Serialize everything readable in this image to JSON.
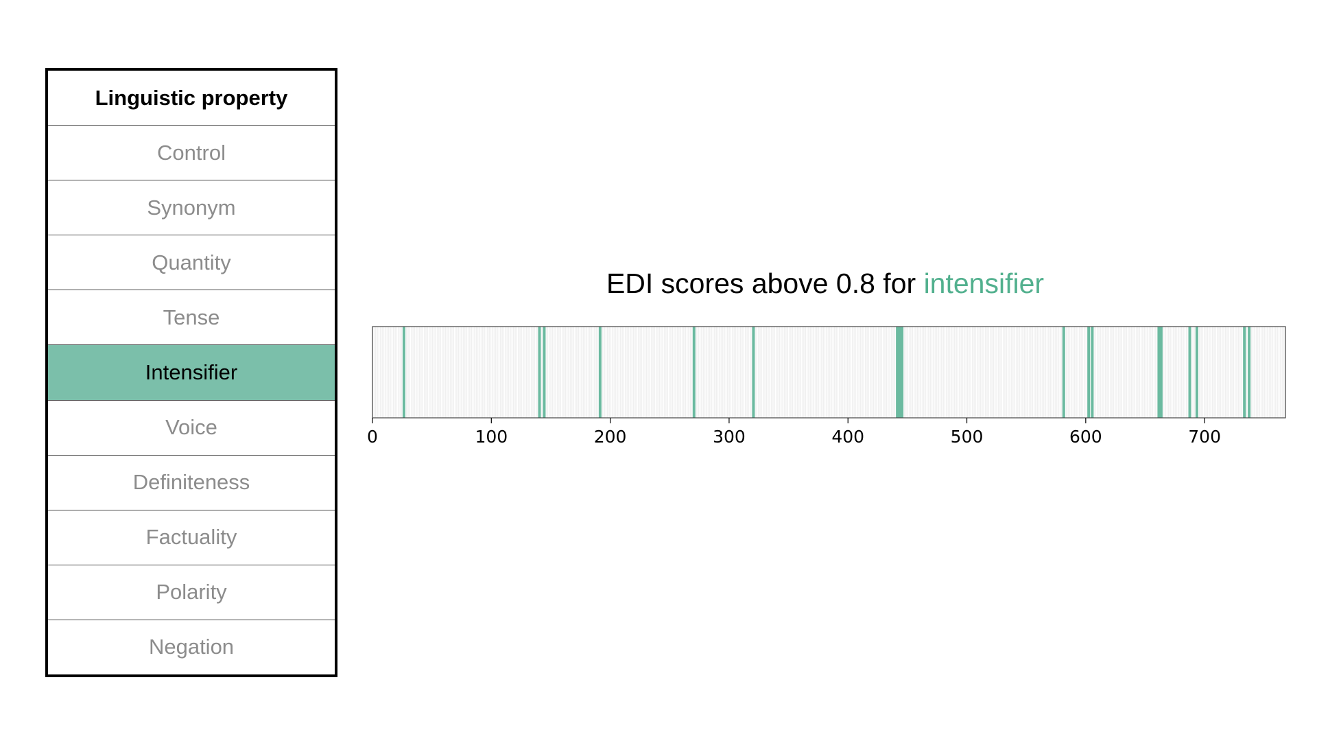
{
  "table": {
    "header": "Linguistic property",
    "rows": [
      {
        "label": "Control",
        "selected": false
      },
      {
        "label": "Synonym",
        "selected": false
      },
      {
        "label": "Quantity",
        "selected": false
      },
      {
        "label": "Tense",
        "selected": false
      },
      {
        "label": "Intensifier",
        "selected": true
      },
      {
        "label": "Voice",
        "selected": false
      },
      {
        "label": "Definiteness",
        "selected": false
      },
      {
        "label": "Factuality",
        "selected": false
      },
      {
        "label": "Polarity",
        "selected": false
      },
      {
        "label": "Negation",
        "selected": false
      }
    ]
  },
  "colors": {
    "accent": "#52b08e",
    "selected_row": "#7bbfaa",
    "highlight_line": "#6bbaa0",
    "faint_line": "#e6e6e6"
  },
  "chart_data": {
    "type": "barcode",
    "title": "EDI scores above 0.8 for ",
    "title_highlight": "intensifier",
    "xlabel": "",
    "ylabel": "",
    "xlim": [
      0,
      768
    ],
    "xticks": [
      0,
      100,
      200,
      300,
      400,
      500,
      600,
      700
    ],
    "highlighted_indices": [
      26,
      140,
      144,
      191,
      270,
      320,
      441,
      443,
      445,
      581,
      602,
      605,
      661,
      663,
      687,
      693,
      733,
      737
    ],
    "grid": false,
    "legend": "none"
  }
}
